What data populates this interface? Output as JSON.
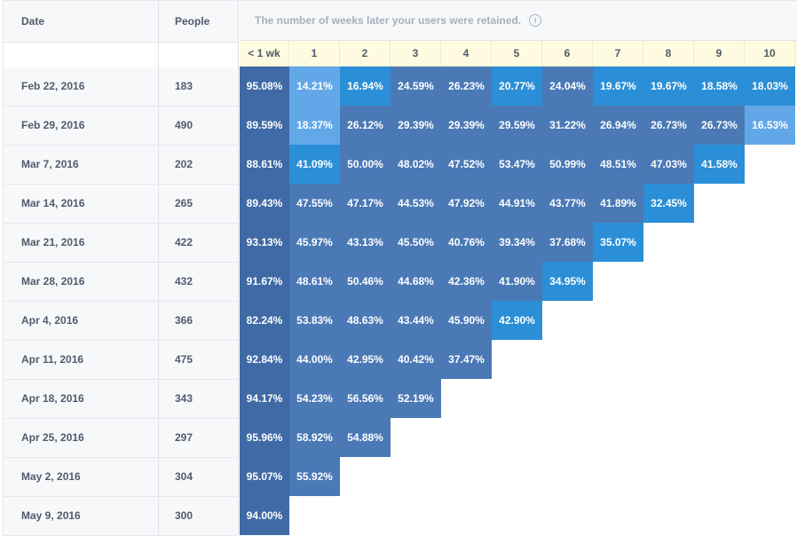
{
  "header": {
    "date_label": "Date",
    "people_label": "People",
    "retention_caption": "The number of weeks later your users were retained.",
    "info_icon_glyph": "i"
  },
  "weeks": [
    "< 1 wk",
    "1",
    "2",
    "3",
    "4",
    "5",
    "6",
    "7",
    "8",
    "9",
    "10"
  ],
  "colors": {
    "dark": "#3f6aa5",
    "mid": "#4a79b6",
    "bright": "#2a8fd6",
    "light": "#62a8e8"
  },
  "rows": [
    {
      "date": "Feb 22, 2016",
      "people": "183",
      "values": [
        "95.08%",
        "14.21%",
        "16.94%",
        "24.59%",
        "26.23%",
        "20.77%",
        "24.04%",
        "19.67%",
        "19.67%",
        "18.58%",
        "18.03%"
      ],
      "shades": [
        "dark",
        "light",
        "bright",
        "mid",
        "mid",
        "bright",
        "mid",
        "bright",
        "bright",
        "bright",
        "bright"
      ]
    },
    {
      "date": "Feb 29, 2016",
      "people": "490",
      "values": [
        "89.59%",
        "18.37%",
        "26.12%",
        "29.39%",
        "29.39%",
        "29.59%",
        "31.22%",
        "26.94%",
        "26.73%",
        "26.73%",
        "16.53%"
      ],
      "shades": [
        "dark",
        "light",
        "mid",
        "mid",
        "mid",
        "mid",
        "mid",
        "mid",
        "mid",
        "mid",
        "light"
      ]
    },
    {
      "date": "Mar 7, 2016",
      "people": "202",
      "values": [
        "88.61%",
        "41.09%",
        "50.00%",
        "48.02%",
        "47.52%",
        "53.47%",
        "50.99%",
        "48.51%",
        "47.03%",
        "41.58%"
      ],
      "shades": [
        "dark",
        "bright",
        "mid",
        "mid",
        "mid",
        "mid",
        "mid",
        "mid",
        "mid",
        "bright"
      ]
    },
    {
      "date": "Mar 14, 2016",
      "people": "265",
      "values": [
        "89.43%",
        "47.55%",
        "47.17%",
        "44.53%",
        "47.92%",
        "44.91%",
        "43.77%",
        "41.89%",
        "32.45%"
      ],
      "shades": [
        "dark",
        "mid",
        "mid",
        "mid",
        "mid",
        "mid",
        "mid",
        "mid",
        "bright"
      ]
    },
    {
      "date": "Mar 21, 2016",
      "people": "422",
      "values": [
        "93.13%",
        "45.97%",
        "43.13%",
        "45.50%",
        "40.76%",
        "39.34%",
        "37.68%",
        "35.07%"
      ],
      "shades": [
        "dark",
        "mid",
        "mid",
        "mid",
        "mid",
        "mid",
        "mid",
        "bright"
      ]
    },
    {
      "date": "Mar 28, 2016",
      "people": "432",
      "values": [
        "91.67%",
        "48.61%",
        "50.46%",
        "44.68%",
        "42.36%",
        "41.90%",
        "34.95%"
      ],
      "shades": [
        "dark",
        "mid",
        "mid",
        "mid",
        "mid",
        "mid",
        "bright"
      ]
    },
    {
      "date": "Apr 4, 2016",
      "people": "366",
      "values": [
        "82.24%",
        "53.83%",
        "48.63%",
        "43.44%",
        "45.90%",
        "42.90%"
      ],
      "shades": [
        "dark",
        "mid",
        "mid",
        "mid",
        "mid",
        "bright"
      ]
    },
    {
      "date": "Apr 11, 2016",
      "people": "475",
      "values": [
        "92.84%",
        "44.00%",
        "42.95%",
        "40.42%",
        "37.47%"
      ],
      "shades": [
        "dark",
        "mid",
        "mid",
        "mid",
        "mid"
      ]
    },
    {
      "date": "Apr 18, 2016",
      "people": "343",
      "values": [
        "94.17%",
        "54.23%",
        "56.56%",
        "52.19%"
      ],
      "shades": [
        "dark",
        "mid",
        "mid",
        "mid"
      ]
    },
    {
      "date": "Apr 25, 2016",
      "people": "297",
      "values": [
        "95.96%",
        "58.92%",
        "54.88%"
      ],
      "shades": [
        "dark",
        "mid",
        "mid"
      ]
    },
    {
      "date": "May 2, 2016",
      "people": "304",
      "values": [
        "95.07%",
        "55.92%"
      ],
      "shades": [
        "dark",
        "mid"
      ]
    },
    {
      "date": "May 9, 2016",
      "people": "300",
      "values": [
        "94.00%"
      ],
      "shades": [
        "dark"
      ]
    }
  ]
}
